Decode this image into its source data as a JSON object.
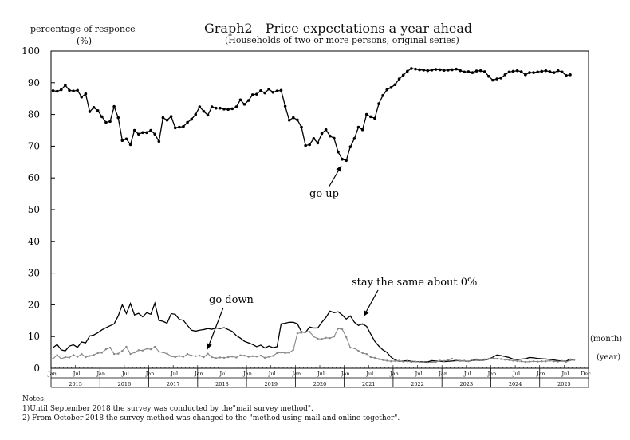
{
  "chart_data": {
    "type": "line",
    "title": "Graph2　Price expectations a year ahead",
    "subtitle": "(Households of two or more persons, original series)",
    "ylabel_line1": "percentage of responce",
    "ylabel_line2": "(%)",
    "x_axis_month_label": "(month)",
    "x_axis_year_label": "(year)",
    "ylim": [
      0,
      100
    ],
    "yticks": [
      "0",
      "10",
      "20",
      "30",
      "40",
      "50",
      "60",
      "70",
      "80",
      "90",
      "100"
    ],
    "grid": false,
    "start": "2015-01",
    "month_ticks": [
      "Jan.",
      "Jul.",
      "Jan.",
      "Jul.",
      "Jan.",
      "Jul.",
      "Jan.",
      "Jul.",
      "Jan.",
      "Jul.",
      "Jan.",
      "Jul.",
      "Jan.",
      "Jul.",
      "Jan.",
      "Jul.",
      "Jan.",
      "Jul.",
      "Jan.",
      "Jul.",
      "Jan.",
      "Jul.",
      "Dec."
    ],
    "years": [
      "2015",
      "2016",
      "2017",
      "2018",
      "2019",
      "2020",
      "2021",
      "2022",
      "2023",
      "2024",
      "2025"
    ],
    "annotations": [
      "go up",
      "go down",
      "stay the same about 0%"
    ],
    "series": [
      {
        "name": "go up",
        "color": "#000000",
        "marker": true,
        "values": [
          87.5,
          87.3,
          87.8,
          89.2,
          87.6,
          87.4,
          87.6,
          85.5,
          86.5,
          80.9,
          82.2,
          81.2,
          79.3,
          77.5,
          77.8,
          82.5,
          79.0,
          71.8,
          72.3,
          70.5,
          75.0,
          73.8,
          74.3,
          74.3,
          75.0,
          73.8,
          71.5,
          79.0,
          78.2,
          79.4,
          75.8,
          76.0,
          76.2,
          77.5,
          78.5,
          80.0,
          82.4,
          81.0,
          79.8,
          82.4,
          82.0,
          82.0,
          81.7,
          81.6,
          81.8,
          82.4,
          84.6,
          83.2,
          84.4,
          86.2,
          86.4,
          87.5,
          86.8,
          88.0,
          87.0,
          87.4,
          87.6,
          82.6,
          78.2,
          79.0,
          78.3,
          76.0,
          70.2,
          70.5,
          72.4,
          71.0,
          74.0,
          75.2,
          73.2,
          72.5,
          68.2,
          65.9,
          65.5,
          69.8,
          72.4,
          76.0,
          75.2,
          80.0,
          79.3,
          78.8,
          83.4,
          86.0,
          87.8,
          88.5,
          89.4,
          91.2,
          92.4,
          93.6,
          94.5,
          94.3,
          94.1,
          94.0,
          93.8,
          94.0,
          94.2,
          94.1,
          93.9,
          94.0,
          94.1,
          94.3,
          93.8,
          93.4,
          93.5,
          93.2,
          93.7,
          93.8,
          93.5,
          92.0,
          90.8,
          91.2,
          91.5,
          92.5,
          93.4,
          93.6,
          93.8,
          93.5,
          92.5,
          93.2,
          93.2,
          93.4,
          93.6,
          93.8,
          93.5,
          93.2,
          93.8,
          93.4,
          92.3,
          92.5
        ]
      },
      {
        "name": "stay the same about 0%",
        "color": "#000000",
        "marker": false,
        "values": [
          6.5,
          7.5,
          5.8,
          5.5,
          7.0,
          7.4,
          6.6,
          8.3,
          8.0,
          10.2,
          10.5,
          11.2,
          12.1,
          12.8,
          13.4,
          14.0,
          16.5,
          20.0,
          17.2,
          20.4,
          16.8,
          17.3,
          16.2,
          17.5,
          17.0,
          20.5,
          15.1,
          14.8,
          14.2,
          17.2,
          17.0,
          15.4,
          15.1,
          13.5,
          12.0,
          11.7,
          12.0,
          12.2,
          12.5,
          12.3,
          12.7,
          12.5,
          12.8,
          12.2,
          11.6,
          10.3,
          9.5,
          8.5,
          8.0,
          7.5,
          6.8,
          7.3,
          6.4,
          7.0,
          6.5,
          6.8,
          14.0,
          14.2,
          14.5,
          14.5,
          14.0,
          11.5,
          11.3,
          13.0,
          12.7,
          12.7,
          14.5,
          16.0,
          18.0,
          17.5,
          17.8,
          16.8,
          15.5,
          16.5,
          14.5,
          13.5,
          14.0,
          13.2,
          10.8,
          8.5,
          7.0,
          5.8,
          5.0,
          3.5,
          2.6,
          2.2,
          2.3,
          2.4,
          2.2,
          2.1,
          2.1,
          2.0,
          2.0,
          2.4,
          2.3,
          2.2,
          2.1,
          2.2,
          2.3,
          2.4,
          2.4,
          2.3,
          2.2,
          2.5,
          2.6,
          2.5,
          2.6,
          2.9,
          3.5,
          4.2,
          4.0,
          3.7,
          3.4,
          2.9,
          2.7,
          2.9,
          3.0,
          3.4,
          3.3,
          3.1,
          3.0,
          2.9,
          2.8,
          2.6,
          2.4,
          2.3,
          2.2,
          2.9,
          2.7
        ]
      },
      {
        "name": "go down",
        "color": "#888888",
        "marker": true,
        "values": [
          3.0,
          4.2,
          3.0,
          3.5,
          3.4,
          4.2,
          3.6,
          4.5,
          3.5,
          3.9,
          4.2,
          4.8,
          4.9,
          6.0,
          6.5,
          4.5,
          4.6,
          5.5,
          6.8,
          4.5,
          5.0,
          5.7,
          5.6,
          6.2,
          6.0,
          6.8,
          5.2,
          5.0,
          4.6,
          3.8,
          3.5,
          3.9,
          3.6,
          4.5,
          4.0,
          3.8,
          4.0,
          3.5,
          4.6,
          3.5,
          3.2,
          3.4,
          3.3,
          3.5,
          3.7,
          3.4,
          4.1,
          4.0,
          3.6,
          3.8,
          3.7,
          4.0,
          3.3,
          3.6,
          3.9,
          4.8,
          5.0,
          4.8,
          4.9,
          5.8,
          11.0,
          11.2,
          11.5,
          11.5,
          10.0,
          9.3,
          9.2,
          9.6,
          9.5,
          10.0,
          12.5,
          12.3,
          9.8,
          6.5,
          6.3,
          5.5,
          4.8,
          4.5,
          3.5,
          3.3,
          2.9,
          2.6,
          2.4,
          2.2,
          2.3,
          2.4,
          2.1,
          2.2,
          2.0,
          2.1,
          2.0,
          1.8,
          1.7,
          1.9,
          2.0,
          2.4,
          2.3,
          2.6,
          3.0,
          2.6,
          2.3,
          2.4,
          2.2,
          2.7,
          2.8,
          2.6,
          2.8,
          3.0,
          3.2,
          3.0,
          2.9,
          2.7,
          2.6,
          2.4,
          2.3,
          2.2,
          2.0,
          2.1,
          2.2,
          2.1,
          2.2,
          2.2,
          2.4,
          2.2,
          2.1,
          2.3,
          2.0,
          2.5,
          2.6
        ]
      }
    ]
  },
  "notes": {
    "title": "Notes:",
    "note1": "1)Until September 2018 the survey was conducted by the\"mail survey method\".",
    "note2": "2) From October 2018 the survey method was changed to the \"method using mail and online together\"."
  }
}
